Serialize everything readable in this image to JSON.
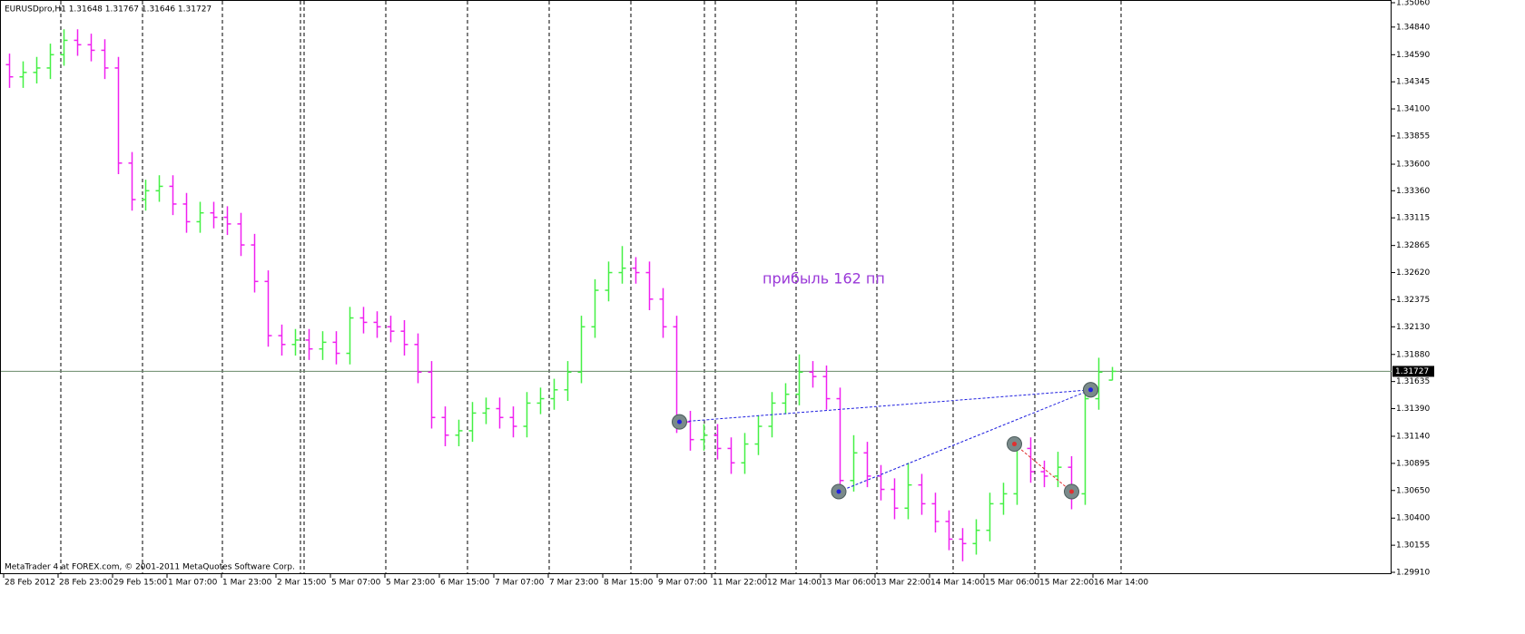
{
  "chart_data": {
    "type": "ohlc",
    "header": "EURUSDpro,H1  1.31648 1.31767 1.31646 1.31727",
    "footer": "MetaTrader 4 at FOREX.com, © 2001-2011 MetaQuotes Software Corp.",
    "annotation": "прибыль 162 пп",
    "up_color": "#44f044",
    "down_color": "#f020f0",
    "ylim": [
      1.2991,
      1.3506
    ],
    "yticks": [
      {
        "value": 1.3506,
        "label": "1.35060"
      },
      {
        "value": 1.3484,
        "label": "1.34840"
      },
      {
        "value": 1.3459,
        "label": "1.34590"
      },
      {
        "value": 1.34345,
        "label": "1.34345"
      },
      {
        "value": 1.341,
        "label": "1.34100"
      },
      {
        "value": 1.33855,
        "label": "1.33855"
      },
      {
        "value": 1.336,
        "label": "1.33600"
      },
      {
        "value": 1.3336,
        "label": "1.33360"
      },
      {
        "value": 1.33115,
        "label": "1.33115"
      },
      {
        "value": 1.32865,
        "label": "1.32865"
      },
      {
        "value": 1.3262,
        "label": "1.32620"
      },
      {
        "value": 1.32375,
        "label": "1.32375"
      },
      {
        "value": 1.3213,
        "label": "1.32130"
      },
      {
        "value": 1.3188,
        "label": "1.31880"
      },
      {
        "value": 1.31635,
        "label": "1.31635"
      },
      {
        "value": 1.3139,
        "label": "1.31390"
      },
      {
        "value": 1.3114,
        "label": "1.31140"
      },
      {
        "value": 1.30895,
        "label": "1.30895"
      },
      {
        "value": 1.3065,
        "label": "1.30650"
      },
      {
        "value": 1.304,
        "label": "1.30400"
      },
      {
        "value": 1.30155,
        "label": "1.30155"
      },
      {
        "value": 1.2991,
        "label": "1.29910"
      }
    ],
    "xticks": [
      {
        "value": 0,
        "label": "28 Feb 2012"
      },
      {
        "value": 4,
        "label": "28 Feb 23:00"
      },
      {
        "value": 8,
        "label": "29 Feb 15:00"
      },
      {
        "value": 12,
        "label": "1 Mar 07:00"
      },
      {
        "value": 16,
        "label": "1 Mar 23:00"
      },
      {
        "value": 20,
        "label": "2 Mar 15:00"
      },
      {
        "value": 24,
        "label": "5 Mar 07:00"
      },
      {
        "value": 28,
        "label": "5 Mar 23:00"
      },
      {
        "value": 32,
        "label": "6 Mar 15:00"
      },
      {
        "value": 36,
        "label": "7 Mar 07:00"
      },
      {
        "value": 40,
        "label": "7 Mar 23:00"
      },
      {
        "value": 44,
        "label": "8 Mar 15:00"
      },
      {
        "value": 48,
        "label": "9 Mar 07:00"
      },
      {
        "value": 52,
        "label": "11 Mar 22:00"
      },
      {
        "value": 56,
        "label": "12 Mar 14:00"
      },
      {
        "value": 60,
        "label": "13 Mar 06:00"
      },
      {
        "value": 64,
        "label": "13 Mar 22:00"
      },
      {
        "value": 68,
        "label": "14 Mar 14:00"
      },
      {
        "value": 72,
        "label": "15 Mar 06:00"
      },
      {
        "value": 76,
        "label": "15 Mar 22:00"
      },
      {
        "value": 80,
        "label": "16 Mar 14:00"
      }
    ],
    "open": [
      1.345,
      1.3439,
      1.3443,
      1.3447,
      1.3459,
      1.3472,
      1.3468,
      1.3463,
      1.3447,
      1.3361,
      1.3328,
      1.3336,
      1.334,
      1.3324,
      1.3308,
      1.3316,
      1.3312,
      1.3306,
      1.3287,
      1.3254,
      1.3205,
      1.3197,
      1.3201,
      1.3193,
      1.3199,
      1.3189,
      1.3221,
      1.3217,
      1.3213,
      1.3209,
      1.3197,
      1.3172,
      1.3131,
      1.3115,
      1.3119,
      1.3135,
      1.3139,
      1.3131,
      1.3123,
      1.3144,
      1.3148,
      1.3156,
      1.3172,
      1.3213,
      1.3246,
      1.3262,
      1.3266,
      1.3262,
      1.3238,
      1.3213,
      1.3127,
      1.3111,
      1.3115,
      1.3103,
      1.309,
      1.3107,
      1.3123,
      1.3144,
      1.3152,
      1.3172,
      1.3168,
      1.3148,
      1.3074,
      1.3099,
      1.3078,
      1.3066,
      1.3049,
      1.307,
      1.3053,
      1.3037,
      1.3021,
      1.3017,
      1.3029,
      1.3053,
      1.3062,
      1.3103,
      1.3082,
      1.3078,
      1.3086,
      1.3062,
      1.3148,
      1.31648
    ],
    "high": [
      1.346,
      1.3453,
      1.3457,
      1.3469,
      1.3482,
      1.3482,
      1.3478,
      1.3473,
      1.3457,
      1.3371,
      1.3346,
      1.335,
      1.335,
      1.3334,
      1.3326,
      1.3326,
      1.3322,
      1.3316,
      1.3297,
      1.3264,
      1.3215,
      1.3211,
      1.3211,
      1.3209,
      1.3209,
      1.3231,
      1.3231,
      1.3227,
      1.3223,
      1.3219,
      1.3207,
      1.3182,
      1.3141,
      1.3129,
      1.3145,
      1.3149,
      1.3149,
      1.3141,
      1.3154,
      1.3158,
      1.3166,
      1.3182,
      1.3223,
      1.3256,
      1.3272,
      1.3286,
      1.3276,
      1.3272,
      1.3248,
      1.3223,
      1.3137,
      1.3125,
      1.3125,
      1.3113,
      1.3117,
      1.3133,
      1.3154,
      1.3162,
      1.3188,
      1.3182,
      1.3178,
      1.3158,
      1.3115,
      1.3109,
      1.3088,
      1.3076,
      1.309,
      1.308,
      1.3063,
      1.3047,
      1.3031,
      1.3039,
      1.3063,
      1.3072,
      1.3113,
      1.3113,
      1.3092,
      1.31,
      1.3096,
      1.3158,
      1.3185,
      1.31767
    ],
    "low": [
      1.3429,
      1.3429,
      1.3433,
      1.3437,
      1.3449,
      1.3458,
      1.3453,
      1.3437,
      1.3351,
      1.3318,
      1.3318,
      1.3326,
      1.3314,
      1.3298,
      1.3298,
      1.3302,
      1.3296,
      1.3277,
      1.3244,
      1.3195,
      1.3187,
      1.3187,
      1.3183,
      1.3183,
      1.3179,
      1.3179,
      1.3207,
      1.3203,
      1.3199,
      1.3187,
      1.3162,
      1.3121,
      1.3105,
      1.3105,
      1.3109,
      1.3125,
      1.3121,
      1.3113,
      1.3113,
      1.3134,
      1.3138,
      1.3146,
      1.3162,
      1.3203,
      1.3236,
      1.3252,
      1.3252,
      1.3228,
      1.3203,
      1.3117,
      1.3101,
      1.3101,
      1.3093,
      1.308,
      1.308,
      1.3097,
      1.3113,
      1.3134,
      1.3142,
      1.3158,
      1.3138,
      1.3064,
      1.3064,
      1.3068,
      1.3056,
      1.3039,
      1.3039,
      1.3043,
      1.3027,
      1.3011,
      1.3001,
      1.3007,
      1.3019,
      1.3043,
      1.3052,
      1.3072,
      1.3068,
      1.3068,
      1.3048,
      1.3052,
      1.3138,
      1.31646
    ],
    "close": [
      1.3439,
      1.3443,
      1.3447,
      1.3459,
      1.3472,
      1.3468,
      1.3463,
      1.3447,
      1.3361,
      1.3328,
      1.3336,
      1.334,
      1.3324,
      1.3308,
      1.3316,
      1.3312,
      1.3306,
      1.3287,
      1.3254,
      1.3205,
      1.3197,
      1.3201,
      1.3193,
      1.3199,
      1.3189,
      1.3221,
      1.3217,
      1.3213,
      1.3209,
      1.3197,
      1.3172,
      1.3131,
      1.3115,
      1.3119,
      1.3135,
      1.3139,
      1.3131,
      1.3123,
      1.3144,
      1.3148,
      1.3156,
      1.3172,
      1.3213,
      1.3246,
      1.3262,
      1.3266,
      1.3262,
      1.3238,
      1.3213,
      1.3127,
      1.3111,
      1.3115,
      1.3103,
      1.309,
      1.3107,
      1.3123,
      1.3144,
      1.3152,
      1.3172,
      1.3168,
      1.3148,
      1.3074,
      1.3099,
      1.3078,
      1.3066,
      1.3049,
      1.307,
      1.3053,
      1.3037,
      1.3021,
      1.3017,
      1.3029,
      1.3053,
      1.3062,
      1.3103,
      1.3082,
      1.3078,
      1.3086,
      1.3062,
      1.3148,
      1.3172,
      1.31727
    ],
    "trades": [
      {
        "x": 49.2,
        "price": 1.3127,
        "close_x": 79.4,
        "close_price": 1.3156,
        "color": "#2020e0"
      },
      {
        "x": 60.9,
        "price": 1.3064,
        "close_x": 79.4,
        "close_price": 1.3156,
        "color": "#2020e0"
      },
      {
        "x": 73.8,
        "price": 1.3107,
        "close_x": 78.0,
        "close_price": 1.3064,
        "color": "#e03030"
      }
    ]
  }
}
